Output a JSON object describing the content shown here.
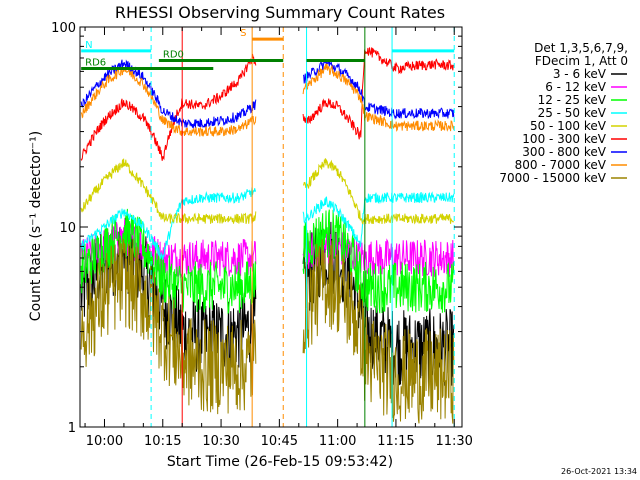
{
  "chart_data": {
    "type": "line",
    "title": "RHESSI Observing Summary Count Rates",
    "xlabel": "Start Time (26-Feb-15 09:53:42)",
    "ylabel": "Count Rate (s⁻¹ detector⁻¹)",
    "y_scale": "log",
    "ylim": [
      1,
      100
    ],
    "xlim": [
      "09:53:42",
      "11:32:00"
    ],
    "grid": false,
    "x_ticks": [
      "10:00",
      "10:15",
      "10:30",
      "10:45",
      "11:00",
      "11:15",
      "11:30"
    ],
    "y_ticks": [
      "1",
      "10",
      "100"
    ],
    "legend_header": [
      "Det 1,3,5,6,7,9,",
      "FDecim 1, Att 0"
    ],
    "legend_position": "right",
    "series": [
      {
        "name": "3 - 6 keV",
        "color": "#000000",
        "x": [
          "09:54",
          "10:00",
          "10:05",
          "10:10",
          "10:15",
          "10:20",
          "10:25",
          "10:30",
          "10:35",
          "10:38",
          "10:52",
          "10:57",
          "11:00",
          "11:03",
          "11:06",
          "11:07",
          "11:15",
          "11:20",
          "11:25",
          "11:30"
        ],
        "y": [
          4.5,
          6.5,
          7.5,
          6,
          4,
          3,
          2.8,
          2.9,
          3,
          3.2,
          5.5,
          7.5,
          7,
          5.5,
          4,
          3,
          2.5,
          2.5,
          2.5,
          2.5
        ]
      },
      {
        "name": "6 - 12 keV",
        "color": "#ff00ff",
        "x": [
          "09:54",
          "10:00",
          "10:05",
          "10:10",
          "10:15",
          "10:20",
          "10:25",
          "10:30",
          "10:35",
          "10:38",
          "10:52",
          "10:57",
          "11:00",
          "11:03",
          "11:06",
          "11:07",
          "11:15",
          "11:20",
          "11:25",
          "11:30"
        ],
        "y": [
          7,
          8,
          9,
          8,
          7,
          7,
          7,
          7,
          7,
          7,
          7.5,
          8,
          8,
          7.5,
          7,
          7,
          7,
          7,
          7,
          7
        ]
      },
      {
        "name": "12 - 25 keV",
        "color": "#00ff00",
        "x": [
          "09:54",
          "10:00",
          "10:05",
          "10:10",
          "10:15",
          "10:20",
          "10:25",
          "10:30",
          "10:35",
          "10:38",
          "10:52",
          "10:57",
          "11:00",
          "11:03",
          "11:06",
          "11:07",
          "11:15",
          "11:20",
          "11:25",
          "11:30"
        ],
        "y": [
          6,
          8,
          9.5,
          8,
          5.5,
          5,
          5,
          5,
          5,
          5.2,
          8,
          9.5,
          9,
          7.5,
          5.5,
          5,
          5,
          5,
          5,
          5
        ]
      },
      {
        "name": "25 - 50 keV",
        "color": "#00ffff",
        "x": [
          "09:54",
          "10:00",
          "10:05",
          "10:10",
          "10:15",
          "10:20",
          "10:25",
          "10:30",
          "10:35",
          "10:38",
          "10:52",
          "10:57",
          "11:00",
          "11:03",
          "11:06",
          "11:07",
          "11:15",
          "11:20",
          "11:25",
          "11:30"
        ],
        "y": [
          8,
          10,
          12,
          10,
          7,
          13.5,
          14,
          14,
          14,
          15,
          11,
          13.5,
          12,
          10,
          8,
          14,
          14,
          14,
          14,
          14
        ]
      },
      {
        "name": "50 - 100 keV",
        "color": "#d2d200",
        "x": [
          "09:54",
          "10:00",
          "10:05",
          "10:10",
          "10:15",
          "10:20",
          "10:25",
          "10:30",
          "10:35",
          "10:38",
          "10:52",
          "10:57",
          "11:00",
          "11:03",
          "11:06",
          "11:07",
          "11:15",
          "11:20",
          "11:25",
          "11:30"
        ],
        "y": [
          12,
          17,
          21,
          16,
          11,
          11,
          11,
          11,
          11,
          11,
          16,
          21,
          19,
          15,
          11,
          11,
          11,
          11,
          11,
          11
        ]
      },
      {
        "name": "100 - 300 keV",
        "color": "#ff0000",
        "x": [
          "09:54",
          "10:00",
          "10:05",
          "10:10",
          "10:15",
          "10:20",
          "10:25",
          "10:30",
          "10:35",
          "10:38",
          "10:52",
          "10:57",
          "11:00",
          "11:03",
          "11:06",
          "11:07",
          "11:15",
          "11:20",
          "11:25",
          "11:30"
        ],
        "y": [
          22,
          34,
          42,
          35,
          22,
          42,
          40,
          45,
          55,
          70,
          33,
          42,
          40,
          34,
          28,
          78,
          62,
          64,
          65,
          64
        ]
      },
      {
        "name": "300 - 800 keV",
        "color": "#0000ff",
        "x": [
          "09:54",
          "10:00",
          "10:05",
          "10:10",
          "10:15",
          "10:20",
          "10:25",
          "10:30",
          "10:35",
          "10:38",
          "10:52",
          "10:57",
          "11:00",
          "11:03",
          "11:06",
          "11:07",
          "11:15",
          "11:20",
          "11:25",
          "11:30"
        ],
        "y": [
          40,
          56,
          66,
          56,
          38,
          33,
          33,
          34,
          36,
          40,
          56,
          66,
          62,
          56,
          48,
          40,
          37,
          37,
          37,
          37
        ]
      },
      {
        "name": "800 - 7000 keV",
        "color": "#ff8c00",
        "x": [
          "09:54",
          "10:00",
          "10:05",
          "10:10",
          "10:15",
          "10:20",
          "10:25",
          "10:30",
          "10:35",
          "10:38",
          "10:52",
          "10:57",
          "11:00",
          "11:03",
          "11:06",
          "11:07",
          "11:15",
          "11:20",
          "11:25",
          "11:30"
        ],
        "y": [
          36,
          52,
          62,
          52,
          34,
          30,
          30,
          30,
          31,
          34,
          50,
          62,
          58,
          52,
          44,
          36,
          32,
          32,
          32,
          32
        ]
      },
      {
        "name": "7000 - 15000 keV",
        "color": "#9a8200",
        "x": [
          "09:54",
          "10:00",
          "10:05",
          "10:10",
          "10:15",
          "10:20",
          "10:25",
          "10:30",
          "10:35",
          "10:38",
          "10:52",
          "10:57",
          "11:00",
          "11:03",
          "11:06",
          "11:07",
          "11:15",
          "11:20",
          "11:25",
          "11:30"
        ],
        "y": [
          3,
          4.5,
          5.5,
          4.5,
          3,
          2.2,
          2,
          2,
          2,
          2.1,
          4,
          5.5,
          5,
          4,
          3,
          2.2,
          1.8,
          1.8,
          1.8,
          1.8
        ]
      }
    ],
    "annotations": [
      {
        "text": "N",
        "color": "#00ffff",
        "x_start": "09:54",
        "x_end": "10:12",
        "y": 76
      },
      {
        "text": "RD0",
        "color": "#008000",
        "x_start": "10:14",
        "x_end": "10:46",
        "y": 68
      },
      {
        "text": "RD6",
        "color": "#008000",
        "x_start": "09:54",
        "x_end": "10:28",
        "y": 62
      },
      {
        "text": "S",
        "color": "#ff8c00",
        "x_start": "10:38",
        "x_end": "10:46",
        "y": 87
      },
      {
        "text": "",
        "color": "#008000",
        "x_start": "10:52",
        "x_end": "11:07",
        "y": 68
      },
      {
        "text": "",
        "color": "#00ffff",
        "x_start": "11:14",
        "x_end": "11:30",
        "y": 76
      }
    ],
    "vertical_markers": [
      {
        "x": "10:12",
        "color": "#00ffff",
        "style": "dashed"
      },
      {
        "x": "10:20",
        "color": "#ff0000",
        "style": "solid"
      },
      {
        "x": "10:38",
        "color": "#ff8c00",
        "style": "solid"
      },
      {
        "x": "10:46",
        "color": "#ff8c00",
        "style": "dashed"
      },
      {
        "x": "10:52",
        "color": "#00ffff",
        "style": "solid"
      },
      {
        "x": "11:07",
        "color": "#008000",
        "style": "solid"
      },
      {
        "x": "11:14",
        "color": "#00ffff",
        "style": "solid"
      },
      {
        "x": "11:30",
        "color": "#00ffff",
        "style": "dashed"
      }
    ]
  },
  "timestamp": "26-Oct-2021 13:34"
}
